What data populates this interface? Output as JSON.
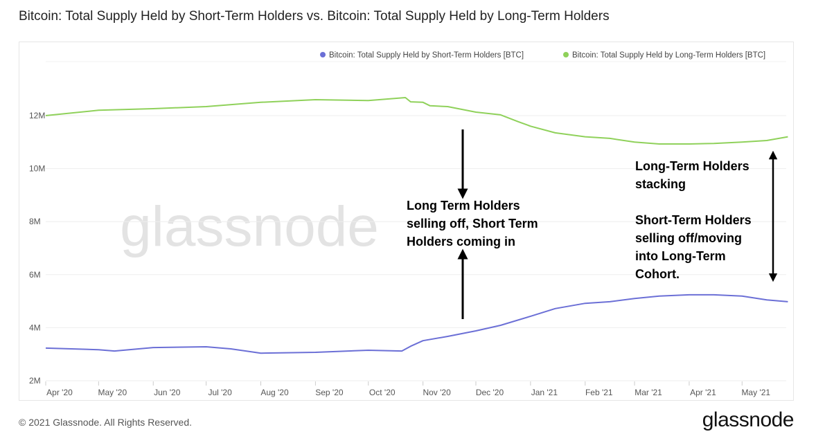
{
  "title": "Bitcoin: Total Supply Held by Short-Term Holders vs. Bitcoin: Total Supply Held by Long-Term Holders",
  "footer": "© 2021 Glassnode. All Rights Reserved.",
  "logo": "glassnode",
  "watermark": "glassnode",
  "annotations": {
    "middle": "Long Term Holders\nselling off, Short Term\nHolders coming in",
    "right_top": "Long-Term Holders\nstacking",
    "right_bottom": "Short-Term Holders\nselling off/moving\ninto Long-Term\nCohort."
  },
  "chart_data": {
    "type": "line",
    "title": "Bitcoin: Total Supply Held by Short-Term Holders vs. Bitcoin: Total Supply Held by Long-Term Holders",
    "xlabel": "",
    "ylabel": "",
    "ylim": [
      2000000,
      13500000
    ],
    "y_ticks": [
      "2M",
      "4M",
      "6M",
      "8M",
      "10M",
      "12M"
    ],
    "y_tick_values": [
      2000000,
      4000000,
      6000000,
      8000000,
      10000000,
      12000000
    ],
    "x_ticks": [
      "Apr '20",
      "May '20",
      "Jun '20",
      "Jul '20",
      "Aug '20",
      "Sep '20",
      "Oct '20",
      "Nov '20",
      "Dec '20",
      "Jan '21",
      "Feb '21",
      "Mar '21",
      "Apr '21",
      "May '21"
    ],
    "x_tick_dates": [
      "2020-04-01",
      "2020-05-01",
      "2020-06-01",
      "2020-07-01",
      "2020-08-01",
      "2020-09-01",
      "2020-10-01",
      "2020-11-01",
      "2020-12-01",
      "2021-01-01",
      "2021-02-01",
      "2021-03-01",
      "2021-04-01",
      "2021-05-01"
    ],
    "grid": true,
    "legend_position": "top-right",
    "series": [
      {
        "name": "Bitcoin: Total Supply Held by Short-Term Holders [BTC]",
        "color": "#6b6fd6",
        "x": [
          "2020-04-01",
          "2020-05-01",
          "2020-05-10",
          "2020-06-01",
          "2020-07-01",
          "2020-07-15",
          "2020-08-01",
          "2020-09-01",
          "2020-10-01",
          "2020-10-20",
          "2020-10-25",
          "2020-11-01",
          "2020-11-15",
          "2020-12-01",
          "2020-12-15",
          "2021-01-01",
          "2021-01-15",
          "2021-02-01",
          "2021-02-15",
          "2021-03-01",
          "2021-03-15",
          "2021-04-01",
          "2021-04-15",
          "2021-05-01",
          "2021-05-15",
          "2021-05-27"
        ],
        "values": [
          3230000,
          3170000,
          3120000,
          3250000,
          3280000,
          3200000,
          3040000,
          3070000,
          3150000,
          3120000,
          3300000,
          3510000,
          3670000,
          3880000,
          4090000,
          4430000,
          4720000,
          4920000,
          4980000,
          5100000,
          5190000,
          5240000,
          5240000,
          5190000,
          5050000,
          4980000
        ]
      },
      {
        "name": "Bitcoin: Total Supply Held by Long-Term Holders [BTC]",
        "color": "#8fd15a",
        "x": [
          "2020-04-01",
          "2020-05-01",
          "2020-06-01",
          "2020-07-01",
          "2020-08-01",
          "2020-09-01",
          "2020-10-01",
          "2020-10-22",
          "2020-10-25",
          "2020-11-01",
          "2020-11-05",
          "2020-11-15",
          "2020-12-01",
          "2020-12-15",
          "2020-12-25",
          "2021-01-01",
          "2021-01-15",
          "2021-02-01",
          "2021-02-15",
          "2021-03-01",
          "2021-03-15",
          "2021-04-01",
          "2021-04-15",
          "2021-05-01",
          "2021-05-15",
          "2021-05-27"
        ],
        "values": [
          12000000,
          12200000,
          12260000,
          12340000,
          12500000,
          12600000,
          12570000,
          12680000,
          12520000,
          12500000,
          12370000,
          12340000,
          12130000,
          12030000,
          11770000,
          11600000,
          11350000,
          11200000,
          11140000,
          11000000,
          10930000,
          10930000,
          10950000,
          11000000,
          11060000,
          11200000
        ]
      }
    ]
  }
}
